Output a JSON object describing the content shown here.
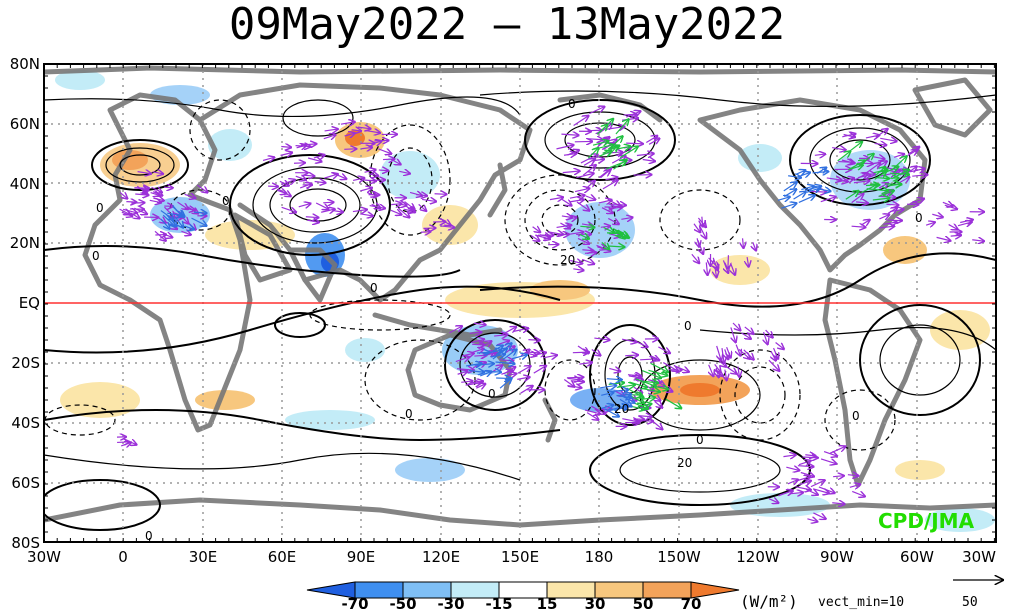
{
  "title": "09May2022 – 13May2022",
  "lat_labels": [
    "80N",
    "60N",
    "40N",
    "20N",
    "EQ",
    "20S",
    "40S",
    "60S",
    "80S"
  ],
  "lon_labels": [
    "30W",
    "0",
    "30E",
    "60E",
    "90E",
    "120E",
    "150E",
    "180",
    "150W",
    "120W",
    "90W",
    "60W",
    "30W"
  ],
  "colorbar": {
    "levels": [
      "-70",
      "-50",
      "-30",
      "-15",
      "15",
      "30",
      "50",
      "70"
    ],
    "colors": [
      "#1f5fe0",
      "#3f8ff0",
      "#7fbff5",
      "#c3ecf7",
      "#ffffff",
      "#fbe6aa",
      "#f7c77e",
      "#f3a35a",
      "#ef7a2e"
    ],
    "units": "(W/m²)"
  },
  "vector_min": "vect_min=10",
  "vector_ref": "50",
  "credit": "CPD/JMA",
  "contour_labels": [
    "0",
    "0",
    "0",
    "0",
    "0",
    "0",
    "0",
    "0",
    "0",
    "0",
    "20",
    "20",
    "20",
    "0",
    "0"
  ]
}
